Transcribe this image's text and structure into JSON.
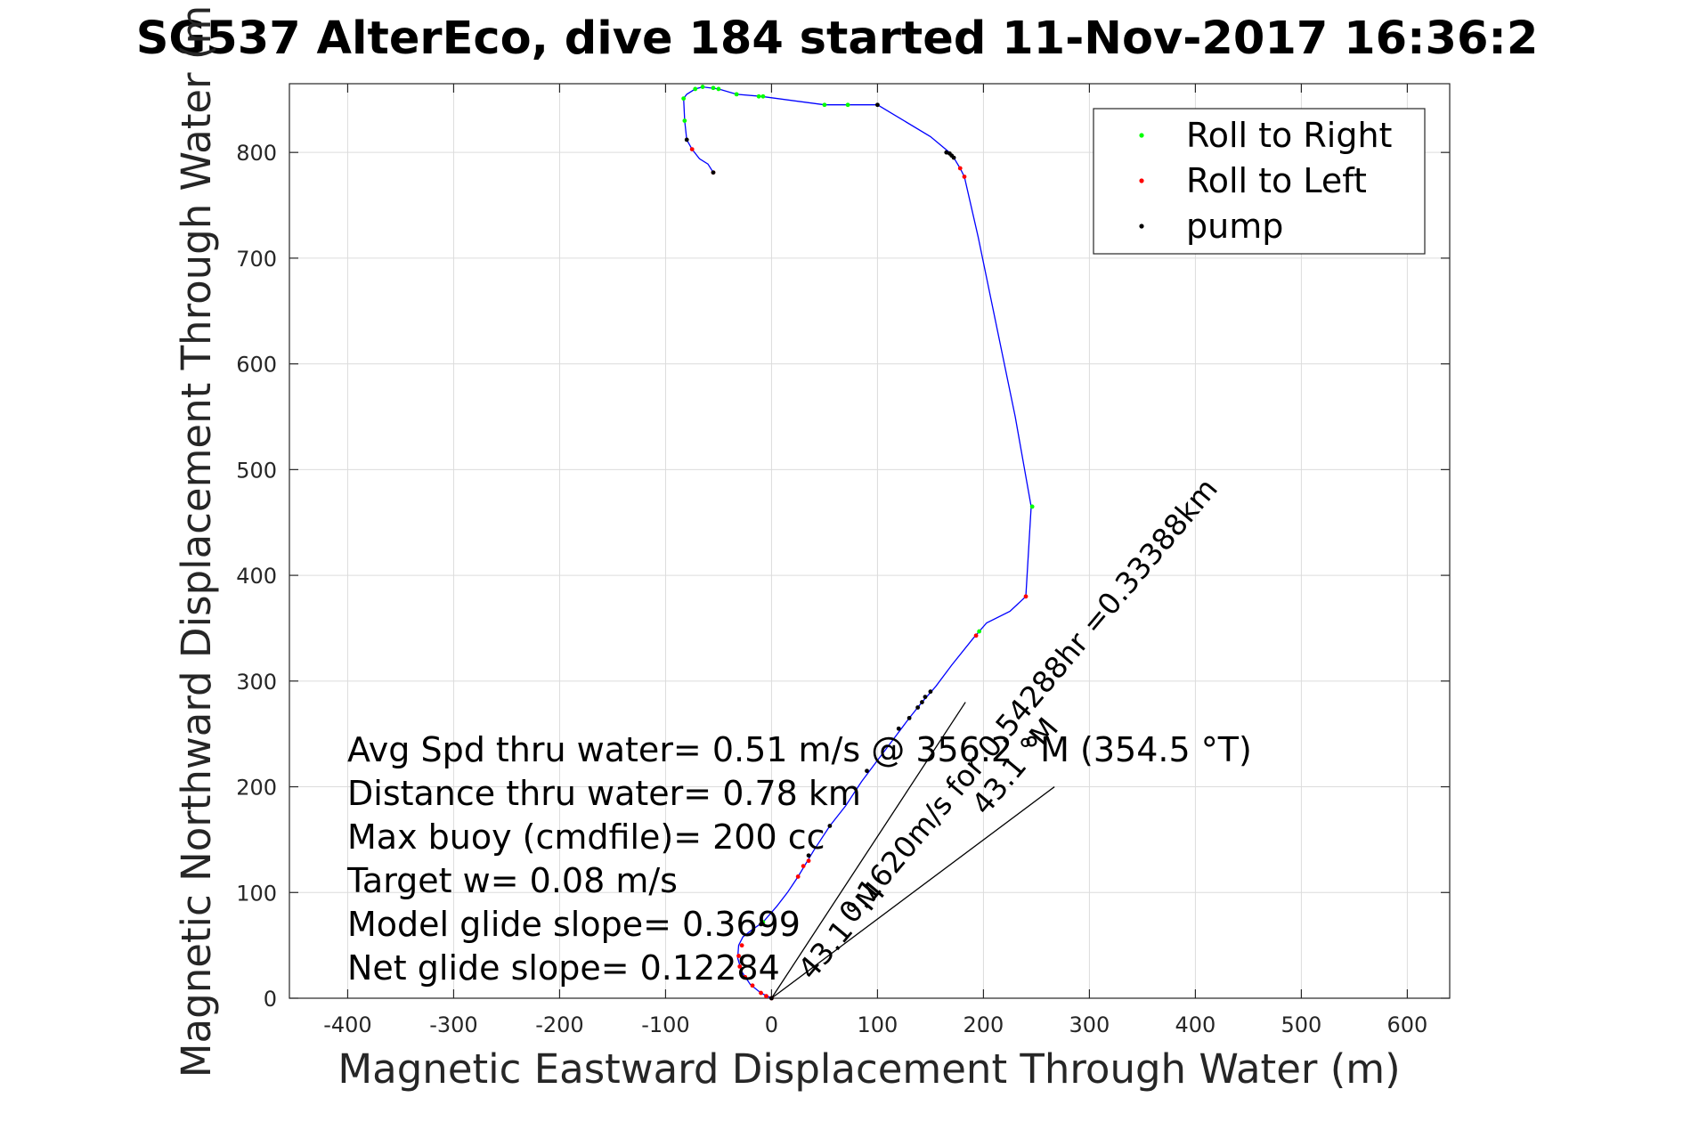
{
  "chart_data": {
    "type": "scatter",
    "title": "SG537 AlterEco, dive 184 started 11-Nov-2017 16:36:2",
    "xlabel": "Magnetic Eastward Displacement Through Water (m)",
    "ylabel": "Magnetic Northward Displacement Through Water (m",
    "xlim": [
      -455,
      640
    ],
    "ylim": [
      0,
      865
    ],
    "xticks": [
      -400,
      -300,
      -200,
      -100,
      0,
      100,
      200,
      300,
      400,
      500,
      600
    ],
    "yticks": [
      0,
      100,
      200,
      300,
      400,
      500,
      600,
      700,
      800
    ],
    "grid": true,
    "legend_position": "top-right",
    "colors": {
      "track": "#0000ff",
      "roll_right": "#00ff00",
      "roll_left": "#ff0000",
      "pump": "#000000",
      "vector": "#000000",
      "grid": "#dcdcdc"
    },
    "legend": [
      {
        "label": "Roll to Right",
        "color": "#00ff00"
      },
      {
        "label": "Roll to Left",
        "color": "#ff0000"
      },
      {
        "label": "pump",
        "color": "#000000"
      }
    ],
    "track": [
      [
        0,
        0
      ],
      [
        -10,
        5
      ],
      [
        -20,
        13
      ],
      [
        -28,
        25
      ],
      [
        -32,
        38
      ],
      [
        -31,
        50
      ],
      [
        -27,
        58
      ],
      [
        -18,
        65
      ],
      [
        -8,
        72
      ],
      [
        5,
        87
      ],
      [
        15,
        100
      ],
      [
        25,
        115
      ],
      [
        40,
        140
      ],
      [
        55,
        163
      ],
      [
        70,
        182
      ],
      [
        85,
        205
      ],
      [
        100,
        225
      ],
      [
        115,
        245
      ],
      [
        130,
        265
      ],
      [
        142,
        280
      ],
      [
        155,
        295
      ],
      [
        170,
        315
      ],
      [
        190,
        340
      ],
      [
        203,
        355
      ],
      [
        225,
        366
      ],
      [
        240,
        380
      ],
      [
        245,
        465
      ],
      [
        230,
        550
      ],
      [
        195,
        720
      ],
      [
        182,
        777
      ],
      [
        178,
        785
      ],
      [
        172,
        795
      ],
      [
        168,
        800
      ],
      [
        150,
        815
      ],
      [
        100,
        845
      ],
      [
        70,
        845
      ],
      [
        50,
        845
      ],
      [
        -10,
        853
      ],
      [
        -33,
        855
      ],
      [
        -50,
        860
      ],
      [
        -65,
        862
      ],
      [
        -72,
        860
      ],
      [
        -80,
        855
      ],
      [
        -83,
        851
      ],
      [
        -82,
        830
      ],
      [
        -80,
        812
      ],
      [
        -75,
        803
      ],
      [
        -68,
        794
      ],
      [
        -60,
        789
      ],
      [
        -55,
        781
      ]
    ],
    "roll_right": [
      [
        -82,
        830
      ],
      [
        -83,
        851
      ],
      [
        -72,
        860
      ],
      [
        -65,
        862
      ],
      [
        -55,
        861
      ],
      [
        -50,
        860
      ],
      [
        -33,
        855
      ],
      [
        -12,
        853
      ],
      [
        -8,
        853
      ],
      [
        50,
        845
      ],
      [
        72,
        845
      ],
      [
        246,
        465
      ],
      [
        196,
        347
      ],
      [
        -8,
        72
      ]
    ],
    "roll_left": [
      [
        -55,
        781
      ],
      [
        -75,
        803
      ],
      [
        178,
        785
      ],
      [
        182,
        777
      ],
      [
        240,
        380
      ],
      [
        193,
        343
      ],
      [
        25,
        115
      ],
      [
        30,
        125
      ],
      [
        35,
        130
      ],
      [
        -28,
        50
      ],
      [
        -31,
        40
      ],
      [
        -30,
        30
      ],
      [
        -25,
        20
      ],
      [
        -18,
        12
      ],
      [
        -10,
        5
      ],
      [
        -5,
        2
      ],
      [
        0,
        0
      ]
    ],
    "pump": [
      [
        -80,
        812
      ],
      [
        -55,
        781
      ],
      [
        100,
        845
      ],
      [
        165,
        800
      ],
      [
        168,
        799
      ],
      [
        170,
        797
      ],
      [
        172,
        795
      ],
      [
        138,
        275
      ],
      [
        142,
        280
      ],
      [
        145,
        285
      ],
      [
        150,
        290
      ],
      [
        130,
        265
      ],
      [
        120,
        255
      ],
      [
        90,
        215
      ],
      [
        55,
        163
      ],
      [
        35,
        135
      ],
      [
        0,
        0
      ],
      [
        -10,
        70
      ]
    ],
    "vector_lines": [
      {
        "from": [
          0,
          0
        ],
        "to": [
          183,
          280
        ]
      },
      {
        "from": [
          0,
          0
        ],
        "to": [
          267,
          200
        ]
      }
    ],
    "annotations": {
      "stats": [
        "Avg Spd thru water=  0.51 m/s @ 356.2 °M (354.5 °T)",
        "Distance thru water=  0.78 km",
        "Max buoy (cmdfile)= 200 cc",
        "Target w= 0.08 m/s",
        "Model glide slope= 0.3699",
        "Net glide slope= 0.12284"
      ],
      "vector_label_1": "0.1620m/s for 0.54288hr =0.33388km",
      "vector_label_2": "43.1 °M",
      "vector_label_3": "43.1 °M"
    }
  }
}
